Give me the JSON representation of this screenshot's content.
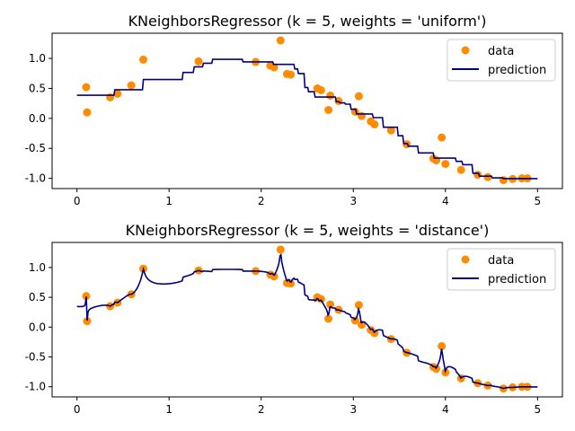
{
  "colors": {
    "data": "#ff8c00",
    "prediction": "#000080"
  },
  "chart_data": [
    {
      "type": "scatter+line",
      "title": "KNeighborsRegressor (k = 5, weights = 'uniform')",
      "k": 5,
      "weights": "uniform",
      "xlim": [
        -0.27,
        5.27
      ],
      "ylim": [
        -1.17,
        1.42
      ],
      "xticks": [
        "0",
        "1",
        "2",
        "3",
        "4",
        "5"
      ],
      "yticks": [
        "1.0",
        "0.5",
        "0.0",
        "-0.5",
        "-1.0"
      ],
      "legend": {
        "position": "upper-right",
        "entries": [
          "data",
          "prediction"
        ]
      },
      "grid": false,
      "prediction_x_range": [
        0,
        5
      ]
    },
    {
      "type": "scatter+line",
      "title": "KNeighborsRegressor (k = 5, weights = 'distance')",
      "k": 5,
      "weights": "distance",
      "xlim": [
        -0.27,
        5.27
      ],
      "ylim": [
        -1.17,
        1.42
      ],
      "xticks": [
        "0",
        "1",
        "2",
        "3",
        "4",
        "5"
      ],
      "yticks": [
        "1.0",
        "0.5",
        "0.0",
        "-0.5",
        "-1.0"
      ],
      "legend": {
        "position": "upper-right",
        "entries": [
          "data",
          "prediction"
        ]
      },
      "grid": false,
      "prediction_x_range": [
        0,
        5
      ]
    }
  ],
  "data_points": {
    "x": [
      0.1,
      0.11,
      0.36,
      0.44,
      0.59,
      0.72,
      1.32,
      1.94,
      2.1,
      2.14,
      2.21,
      2.28,
      2.32,
      2.61,
      2.65,
      2.73,
      2.75,
      2.84,
      3.02,
      3.06,
      3.09,
      3.19,
      3.23,
      3.41,
      3.58,
      3.87,
      3.9,
      3.96,
      4.0,
      4.17,
      4.35,
      4.46,
      4.63,
      4.73,
      4.83,
      4.89
    ],
    "y": [
      0.52,
      0.1,
      0.35,
      0.41,
      0.55,
      0.98,
      0.95,
      0.94,
      0.88,
      0.85,
      1.3,
      0.74,
      0.73,
      0.5,
      0.47,
      0.14,
      0.38,
      0.29,
      0.11,
      0.37,
      0.04,
      -0.05,
      -0.1,
      -0.2,
      -0.43,
      -0.67,
      -0.7,
      -0.32,
      -0.76,
      -0.86,
      -0.94,
      -0.98,
      -1.03,
      -1.01,
      -1.0,
      -1.0
    ]
  }
}
